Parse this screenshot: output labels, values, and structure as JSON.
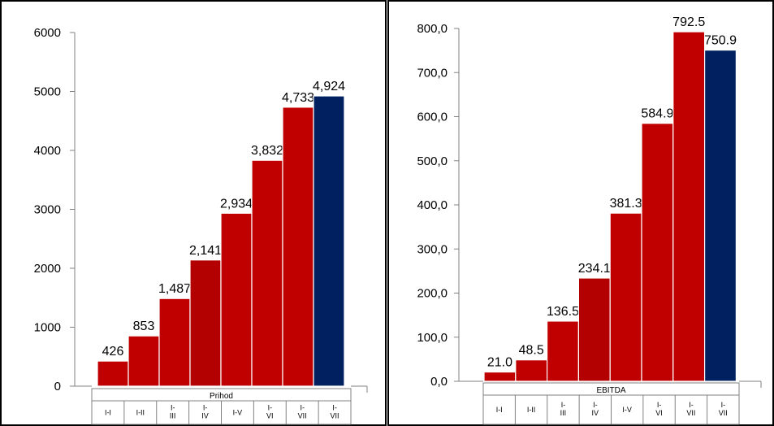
{
  "chart_data": [
    {
      "type": "bar",
      "series_name": "Prihod",
      "categories": [
        [
          "I-I"
        ],
        [
          "I-II"
        ],
        [
          "I-",
          "III"
        ],
        [
          "I-",
          "IV"
        ],
        [
          "I-V"
        ],
        [
          "I-",
          "VI"
        ],
        [
          "I-",
          "VII"
        ],
        [
          "I-",
          "VII"
        ]
      ],
      "values": [
        426,
        853,
        1487,
        2141,
        2934,
        3832,
        4733,
        4924
      ],
      "data_labels": [
        "426",
        "853",
        "1,487",
        "2,141",
        "2,934",
        "3,832",
        "4,733",
        "4,924"
      ],
      "yticks": [
        0,
        1000,
        2000,
        3000,
        4000,
        5000,
        6000
      ],
      "ytick_labels": [
        "0",
        "1000",
        "2000",
        "3000",
        "4000",
        "5000",
        "6000"
      ],
      "ylim": [
        0,
        6000
      ],
      "colors": [
        "#c00000",
        "#c00000",
        "#c00000",
        "#b30000",
        "#c00000",
        "#c00000",
        "#c00000",
        "#002060"
      ],
      "grid": false
    },
    {
      "type": "bar",
      "series_name": "EBITDA",
      "categories": [
        [
          "I-I"
        ],
        [
          "I-II"
        ],
        [
          "I-",
          "III"
        ],
        [
          "I-",
          "IV"
        ],
        [
          "I-V"
        ],
        [
          "I-",
          "VI"
        ],
        [
          "I-",
          "VII"
        ],
        [
          "I-",
          "VII"
        ]
      ],
      "values": [
        21.0,
        48.5,
        136.5,
        234.1,
        381.3,
        584.9,
        792.5,
        750.9
      ],
      "data_labels": [
        "21.0",
        "48.5",
        "136.5",
        "234.1",
        "381.3",
        "584.9",
        "792.5",
        "750.9"
      ],
      "yticks": [
        0,
        100,
        200,
        300,
        400,
        500,
        600,
        700,
        800
      ],
      "ytick_labels": [
        "0,0",
        "100,0",
        "200,0",
        "300,0",
        "400,0",
        "500,0",
        "600,0",
        "700,0",
        "800,0"
      ],
      "ylim": [
        0,
        800
      ],
      "colors": [
        "#c00000",
        "#c00000",
        "#c00000",
        "#b30000",
        "#c00000",
        "#c00000",
        "#c00000",
        "#002060"
      ],
      "grid": false
    }
  ]
}
